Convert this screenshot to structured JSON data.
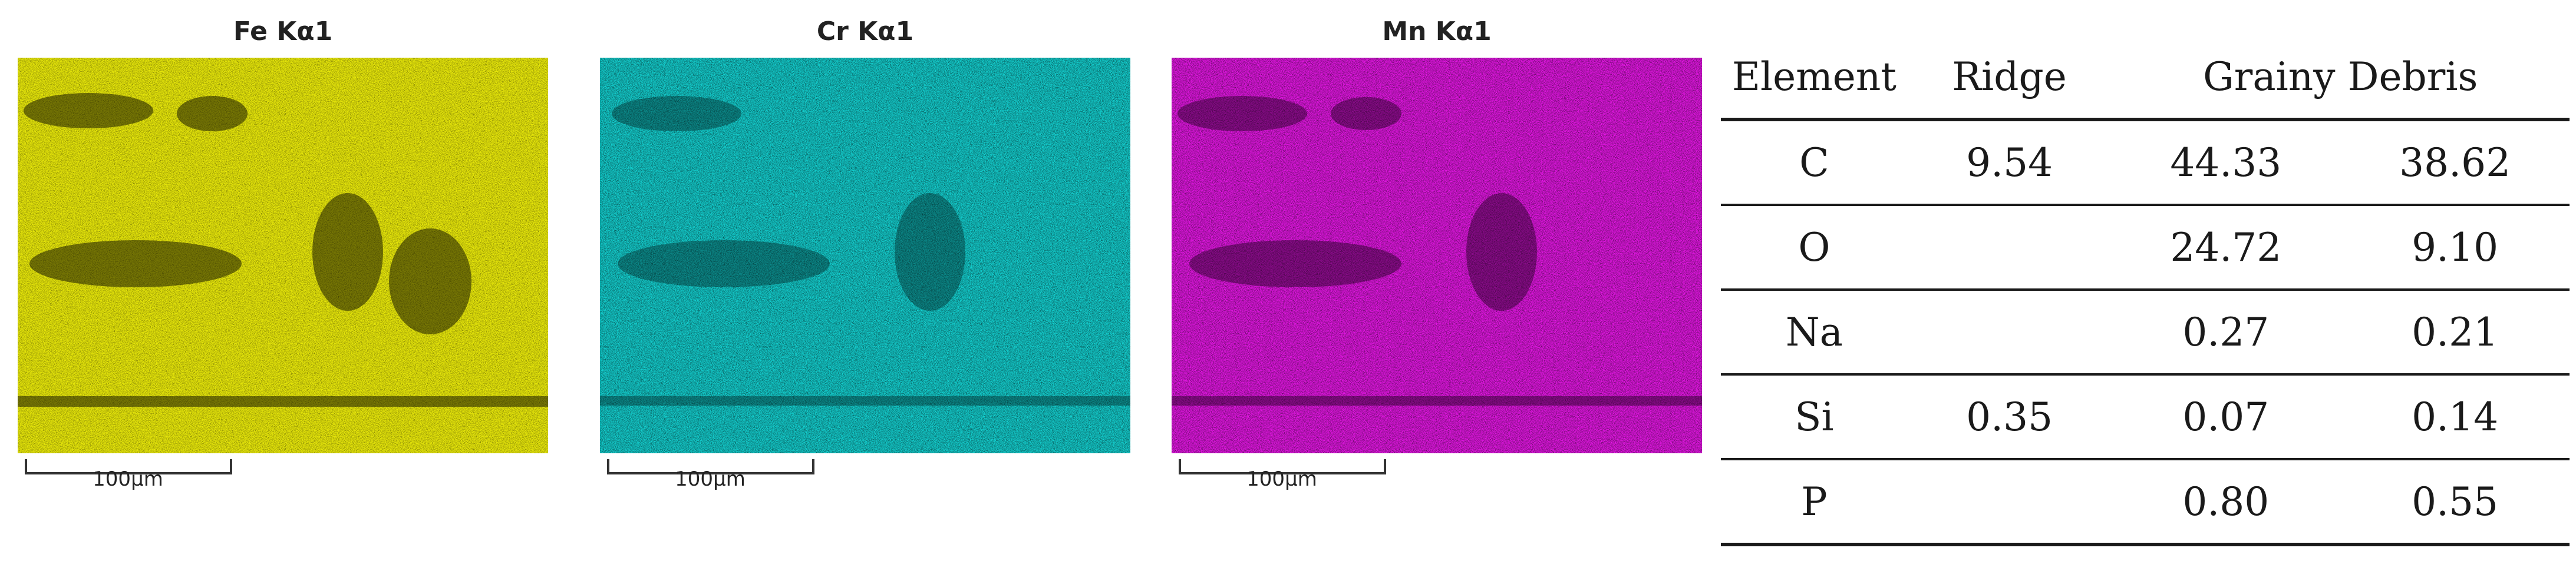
{
  "maps": [
    {
      "title": "Fe Kα1",
      "color": "#e6e60a",
      "scale_label": "100μm"
    },
    {
      "title": "Cr Kα1",
      "color": "#14d2d2",
      "scale_label": "100μm"
    },
    {
      "title": "Mn Kα1",
      "color": "#e617e6",
      "scale_label": "100μm"
    }
  ],
  "table": {
    "headers": {
      "element": "Element",
      "ridge": "Ridge",
      "grainy_debris": "Grainy Debris"
    },
    "rows": [
      {
        "element": "C",
        "ridge": "9.54",
        "grainy_debris_1": "44.33",
        "grainy_debris_2": "38.62"
      },
      {
        "element": "O",
        "ridge": "",
        "grainy_debris_1": "24.72",
        "grainy_debris_2": "9.10"
      },
      {
        "element": "Na",
        "ridge": "",
        "grainy_debris_1": "0.27",
        "grainy_debris_2": "0.21"
      },
      {
        "element": "Si",
        "ridge": "0.35",
        "grainy_debris_1": "0.07",
        "grainy_debris_2": "0.14"
      },
      {
        "element": "P",
        "ridge": "",
        "grainy_debris_1": "0.80",
        "grainy_debris_2": "0.55"
      }
    ]
  }
}
